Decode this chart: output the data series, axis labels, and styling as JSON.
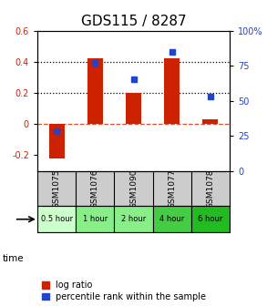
{
  "title": "GDS115 / 8287",
  "categories": [
    "GSM1075",
    "GSM1076",
    "GSM1090",
    "GSM1077",
    "GSM1078"
  ],
  "time_labels": [
    "0.5 hour",
    "1 hour",
    "2 hour",
    "4 hour",
    "6 hour"
  ],
  "time_colors": [
    "#ccffcc",
    "#88ee88",
    "#88ee88",
    "#44cc44",
    "#22bb22"
  ],
  "log_ratio": [
    -0.22,
    0.42,
    0.2,
    0.42,
    0.03
  ],
  "percentile": [
    28,
    77,
    65,
    85,
    53
  ],
  "bar_color": "#cc2200",
  "dot_color": "#2244cc",
  "ylim_left": [
    -0.3,
    0.6
  ],
  "ylim_right": [
    0,
    100
  ],
  "ytick_labels_left": [
    "-0.2",
    "0",
    "0.2",
    "0.4",
    "0.6"
  ],
  "ytick_vals_left": [
    -0.2,
    0.0,
    0.2,
    0.4,
    0.6
  ],
  "ytick_labels_right": [
    "0",
    "25",
    "50",
    "75",
    "100%"
  ],
  "ytick_vals_right": [
    0,
    25,
    50,
    75,
    100
  ],
  "hlines_dotted": [
    0.2,
    0.4
  ],
  "hline_dashed": 0.0,
  "background_color": "#ffffff",
  "title_fontsize": 11,
  "tick_fontsize": 7,
  "legend_fontsize": 7
}
